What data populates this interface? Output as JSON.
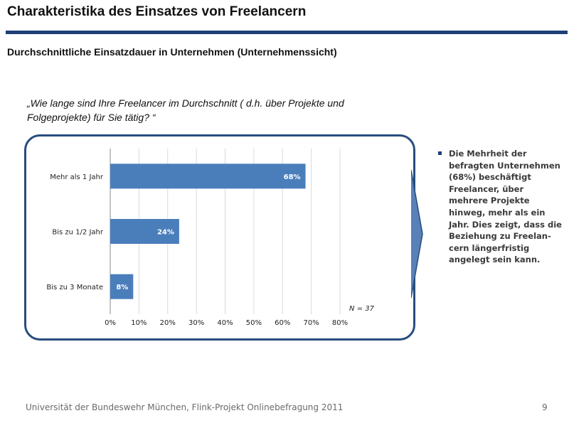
{
  "slide": {
    "title": "Charakteristika des Einsatzes von Freelancern",
    "subtitle": "Durchschnittliche Einsatzdauer in Unternehmen (Unternehmenssicht)",
    "question": "„Wie lange sind Ihre Freelancer im Durchschnitt ( d.h. über Projekte und Folgeprojekte) für Sie tätig? “",
    "bullet_text": "Die Mehrheit der befragten Unternehmen (68%) beschäftigt Freelancer, über mehrere Projekte hinweg, mehr als ein Jahr. Dies zeigt, dass die Beziehung zu Freelan-cern längerfristig angelegt sein kann.",
    "footer": "Universität der Bundeswehr München, Flink-Projekt Onlinebefragung  2011",
    "page_number": "9"
  },
  "colors": {
    "accent": "#1f3f77",
    "bar": "#4a7ebb",
    "frame": "#284d7e"
  },
  "chart_data": {
    "type": "bar",
    "orientation": "horizontal",
    "categories": [
      "Mehr als 1 Jahr",
      "Bis zu 1/2 Jahr",
      "Bis zu 3 Monate"
    ],
    "values": [
      68,
      24,
      8
    ],
    "data_labels": [
      "68%",
      "24%",
      "8%"
    ],
    "xlim": [
      0,
      80
    ],
    "xticks": [
      "0%",
      "10%",
      "20%",
      "30%",
      "40%",
      "50%",
      "60%",
      "70%",
      "80%"
    ],
    "grid": true,
    "annotation": "N = 37"
  }
}
